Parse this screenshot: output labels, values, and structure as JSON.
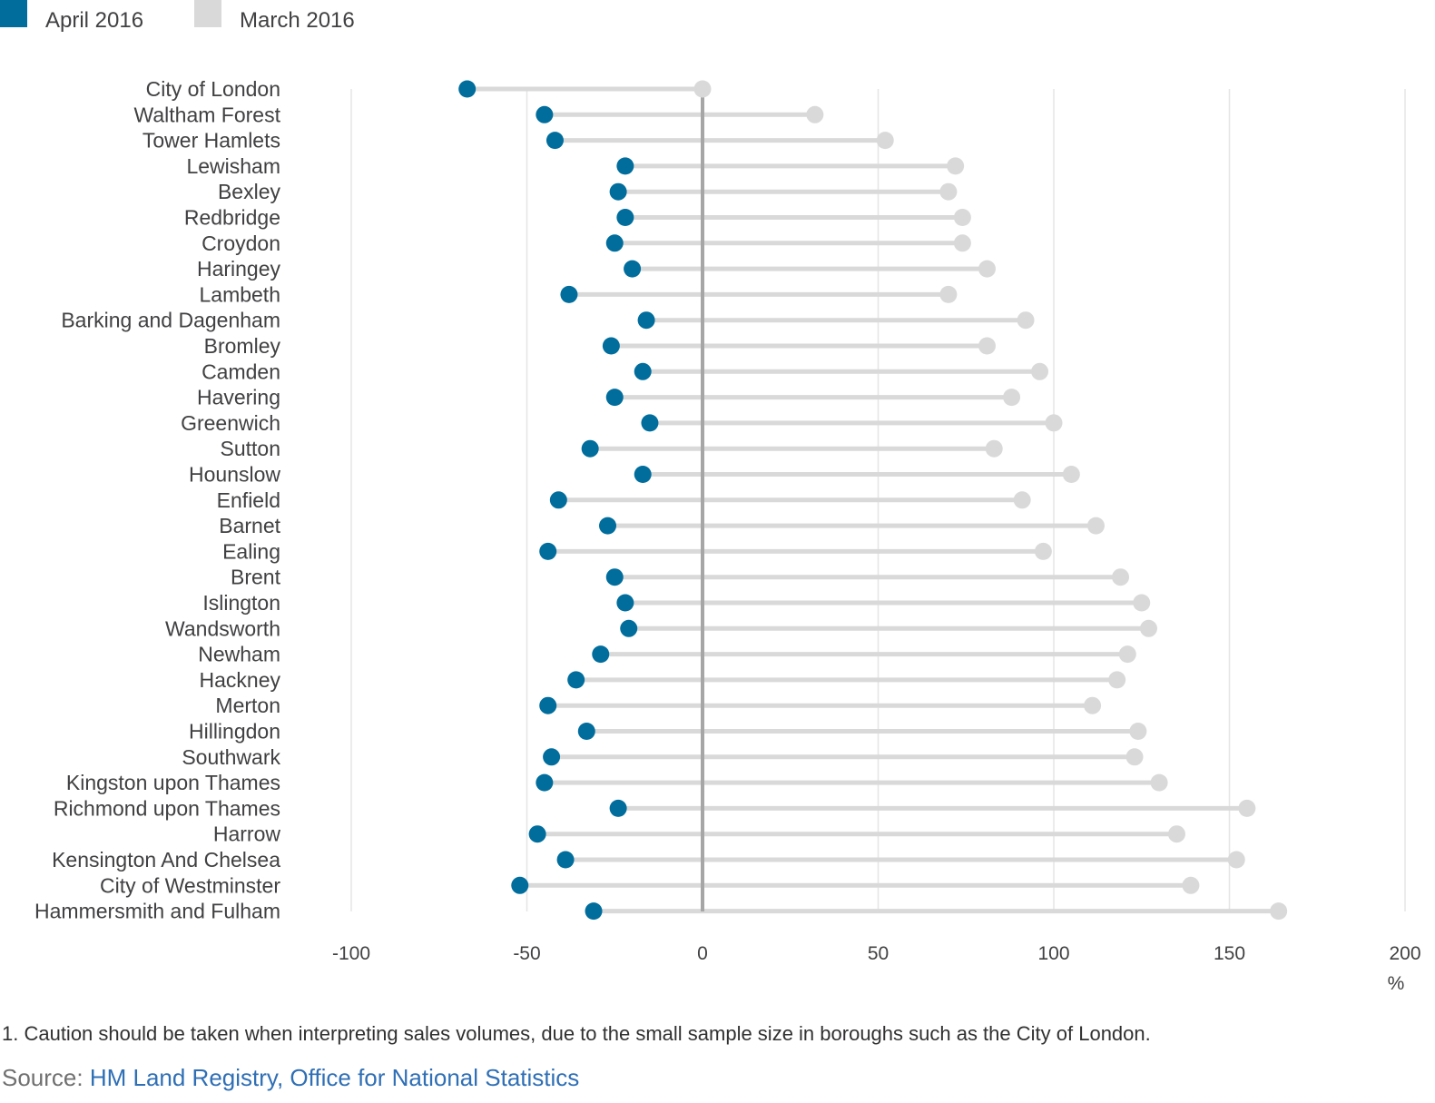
{
  "legend": [
    {
      "name": "April 2016",
      "color": "#006d9c"
    },
    {
      "name": "March 2016",
      "color": "#d9d9d9"
    }
  ],
  "note": "1. Caution should be taken when interpreting sales volumes, due to the small sample size in boroughs such as the City of London.",
  "source": {
    "prefix": "Source: ",
    "link_text": "HM Land Registry, Office for National Statistics"
  },
  "colors": {
    "april": "#006d9c",
    "march": "#d9d9d9",
    "zero_line": "#a6a6a6",
    "grid": "#e5e5e5",
    "text": "#414042",
    "link": "#2f6fb5"
  },
  "chart_data": {
    "type": "scatter",
    "subtype": "dumbbell",
    "xlim": [
      -100,
      200
    ],
    "x_ticks": [
      -100,
      -50,
      0,
      50,
      100,
      150,
      200
    ],
    "xlabel": "%",
    "grid": true,
    "legend_placement": "top-left",
    "categories": [
      "City of London",
      "Waltham Forest",
      "Tower Hamlets",
      "Lewisham",
      "Bexley",
      "Redbridge",
      "Croydon",
      "Haringey",
      "Lambeth",
      "Barking and Dagenham",
      "Bromley",
      "Camden",
      "Havering",
      "Greenwich",
      "Sutton",
      "Hounslow",
      "Enfield",
      "Barnet",
      "Ealing",
      "Brent",
      "Islington",
      "Wandsworth",
      "Newham",
      "Hackney",
      "Merton",
      "Hillingdon",
      "Southwark",
      "Kingston upon Thames",
      "Richmond upon Thames",
      "Harrow",
      "Kensington And Chelsea",
      "City of Westminster",
      "Hammersmith and Fulham"
    ],
    "series": [
      {
        "name": "April 2016",
        "values": [
          -67,
          -45,
          -42,
          -22,
          -24,
          -22,
          -25,
          -20,
          -38,
          -16,
          -26,
          -17,
          -25,
          -15,
          -32,
          -17,
          -41,
          -27,
          -44,
          -25,
          -22,
          -21,
          -29,
          -36,
          -44,
          -33,
          -43,
          -45,
          -24,
          -47,
          -39,
          -52,
          -31
        ]
      },
      {
        "name": "March 2016",
        "values": [
          0,
          32,
          52,
          72,
          70,
          74,
          74,
          81,
          70,
          92,
          81,
          96,
          88,
          100,
          83,
          105,
          91,
          112,
          97,
          119,
          125,
          127,
          121,
          118,
          111,
          124,
          123,
          130,
          155,
          135,
          152,
          139,
          164
        ]
      }
    ]
  }
}
